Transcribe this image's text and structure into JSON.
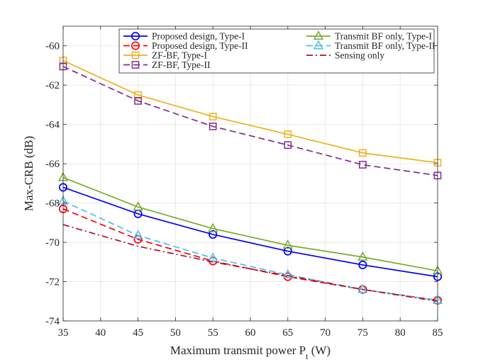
{
  "chart_data": {
    "type": "line",
    "title": "",
    "xlabel": "Maximum transmit power P",
    "xlabel_subscript": "t",
    "xlabel_unit": " (W)",
    "ylabel": "Max-CRB (dB)",
    "x": [
      35,
      45,
      55,
      65,
      75,
      85
    ],
    "xlim": [
      35,
      85
    ],
    "ylim": [
      -74,
      -59
    ],
    "xticks": [
      35,
      40,
      45,
      50,
      55,
      60,
      65,
      70,
      75,
      80,
      85
    ],
    "yticks": [
      -74,
      -72,
      -70,
      -68,
      -66,
      -64,
      -62,
      -60
    ],
    "grid": true,
    "legend_position": "top-right",
    "series": [
      {
        "name": "Proposed design, Type-I",
        "color": "#0000ff",
        "dash": "solid",
        "marker": "circle",
        "values": [
          -67.2,
          -68.55,
          -69.6,
          -70.45,
          -71.15,
          -71.75
        ]
      },
      {
        "name": "Proposed design, Type-II",
        "color": "#ff0000",
        "dash": "dashed",
        "marker": "circle",
        "values": [
          -68.3,
          -69.85,
          -70.95,
          -71.75,
          -72.4,
          -72.95
        ]
      },
      {
        "name": "ZF-BF, Type-I",
        "color": "#edb120",
        "dash": "solid",
        "marker": "square",
        "values": [
          -60.75,
          -62.5,
          -63.6,
          -64.5,
          -65.45,
          -65.95
        ]
      },
      {
        "name": "ZF-BF, Type-II",
        "color": "#7e2f8e",
        "dash": "dashed",
        "marker": "square",
        "values": [
          -61.05,
          -62.8,
          -64.1,
          -65.05,
          -66.05,
          -66.6
        ]
      },
      {
        "name": "Transmit BF only, Type-I",
        "color": "#77ac30",
        "dash": "solid",
        "marker": "triangle",
        "values": [
          -66.7,
          -68.2,
          -69.3,
          -70.15,
          -70.75,
          -71.45
        ]
      },
      {
        "name": "Transmit BF only, Type-II",
        "color": "#4dbeee",
        "dash": "dashed",
        "marker": "triangle",
        "values": [
          -67.9,
          -69.65,
          -70.8,
          -71.65,
          -72.4,
          -72.95
        ]
      },
      {
        "name": "Sensing only",
        "color": "#a2142f",
        "dash": "dashdot",
        "marker": "none",
        "values": [
          -69.1,
          -70.2,
          -71.0,
          -71.7,
          -72.4,
          -73.0
        ]
      }
    ]
  }
}
